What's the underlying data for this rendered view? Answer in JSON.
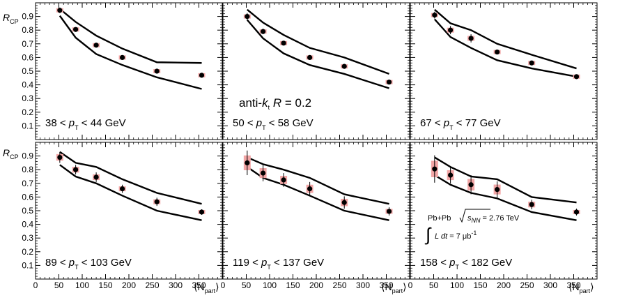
{
  "chart_data": {
    "type": "scatter",
    "ylabel": "R",
    "ylabel_sub": "CP",
    "xlabel_left": "⟨N",
    "xlabel_sub": "part",
    "xlabel_right": "⟩",
    "xlim": [
      0,
      400
    ],
    "ylim": [
      0,
      1.0
    ],
    "x_ticks": [
      0,
      50,
      100,
      150,
      200,
      250,
      300,
      350
    ],
    "y_ticks": [
      0.1,
      0.2,
      0.3,
      0.4,
      0.5,
      0.6,
      0.7,
      0.8,
      0.9
    ],
    "y_tick_labels": [
      "0.1",
      "0.2",
      "0.3",
      "0.4",
      "0.5",
      "0.6",
      "0.7",
      "0.8",
      "0.9"
    ],
    "x": [
      52,
      86,
      130,
      186,
      260,
      356
    ],
    "algorithm_label": {
      "prefix": "anti-",
      "k": "k",
      "k_sub": "t",
      "r": "R",
      "rest": " = 0.2"
    },
    "collision_info": {
      "system": "Pb+Pb",
      "sqrt_s": "s",
      "sqrt_s_sub": "NN",
      "energy": " = 2.76 TeV",
      "integral": "∫",
      "lumi_pre": "L dt",
      "lumi_post": " = 7 μb",
      "lumi_exp": "-1"
    },
    "panels": [
      {
        "pt_low": "38 < ",
        "pt_p": "p",
        "pt_sub": "T",
        "pt_high": " < 44 GeV",
        "values": [
          0.945,
          0.805,
          0.69,
          0.6,
          0.5,
          0.47
        ],
        "errors": [
          0.02,
          0.015,
          0.015,
          0.012,
          0.01,
          0.01
        ],
        "band_upper": [
          0.955,
          0.86,
          0.76,
          0.665,
          0.565,
          0.56
        ],
        "band_lower": [
          0.905,
          0.745,
          0.625,
          0.545,
          0.455,
          0.37
        ]
      },
      {
        "pt_low": "50 < ",
        "pt_p": "p",
        "pt_sub": "T",
        "pt_high": " < 58 GeV",
        "values": [
          0.9,
          0.79,
          0.705,
          0.6,
          0.535,
          0.42
        ],
        "errors": [
          0.025,
          0.02,
          0.015,
          0.012,
          0.012,
          0.012
        ],
        "band_upper": [
          0.95,
          0.855,
          0.765,
          0.67,
          0.6,
          0.48
        ],
        "band_lower": [
          0.875,
          0.74,
          0.63,
          0.545,
          0.48,
          0.375
        ]
      },
      {
        "pt_low": "67 < ",
        "pt_p": "p",
        "pt_sub": "T",
        "pt_high": " < 77 GeV",
        "values": [
          0.91,
          0.8,
          0.74,
          0.64,
          0.56,
          0.46
        ],
        "errors": [
          0.025,
          0.03,
          0.03,
          0.015,
          0.015,
          0.015
        ],
        "band_upper": [
          0.95,
          0.85,
          0.8,
          0.7,
          0.62,
          0.52
        ],
        "band_lower": [
          0.88,
          0.75,
          0.67,
          0.58,
          0.52,
          0.46
        ]
      },
      {
        "pt_low": "89 < ",
        "pt_p": "p",
        "pt_sub": "T",
        "pt_high": " < 103 GeV",
        "values": [
          0.89,
          0.8,
          0.745,
          0.66,
          0.565,
          0.49
        ],
        "errors": [
          0.04,
          0.035,
          0.035,
          0.03,
          0.03,
          0.02
        ],
        "band_upper": [
          0.93,
          0.85,
          0.82,
          0.73,
          0.63,
          0.55
        ],
        "band_lower": [
          0.835,
          0.75,
          0.7,
          0.61,
          0.5,
          0.43
        ]
      },
      {
        "pt_low": "119 < ",
        "pt_p": "p",
        "pt_sub": "T",
        "pt_high": " < 137 GeV",
        "values": [
          0.85,
          0.775,
          0.725,
          0.66,
          0.56,
          0.495
        ],
        "errors": [
          0.09,
          0.06,
          0.05,
          0.05,
          0.045,
          0.03
        ],
        "band_upper": [
          0.89,
          0.84,
          0.8,
          0.74,
          0.62,
          0.55
        ],
        "band_lower": [
          0.82,
          0.74,
          0.69,
          0.61,
          0.5,
          0.43
        ]
      },
      {
        "pt_low": "158 < ",
        "pt_p": "p",
        "pt_sub": "T",
        "pt_high": " < 182 GeV",
        "values": [
          0.805,
          0.76,
          0.69,
          0.655,
          0.545,
          0.49
        ],
        "errors": [
          0.1,
          0.06,
          0.07,
          0.06,
          0.035,
          0.025
        ],
        "band_upper": [
          0.89,
          0.82,
          0.75,
          0.73,
          0.6,
          0.56
        ],
        "band_lower": [
          0.76,
          0.69,
          0.63,
          0.59,
          0.49,
          0.43
        ]
      }
    ],
    "colors": {
      "marker": "#000000",
      "syst_box": "#f2a6a6",
      "band_line": "#000000",
      "frame": "#000000"
    }
  }
}
